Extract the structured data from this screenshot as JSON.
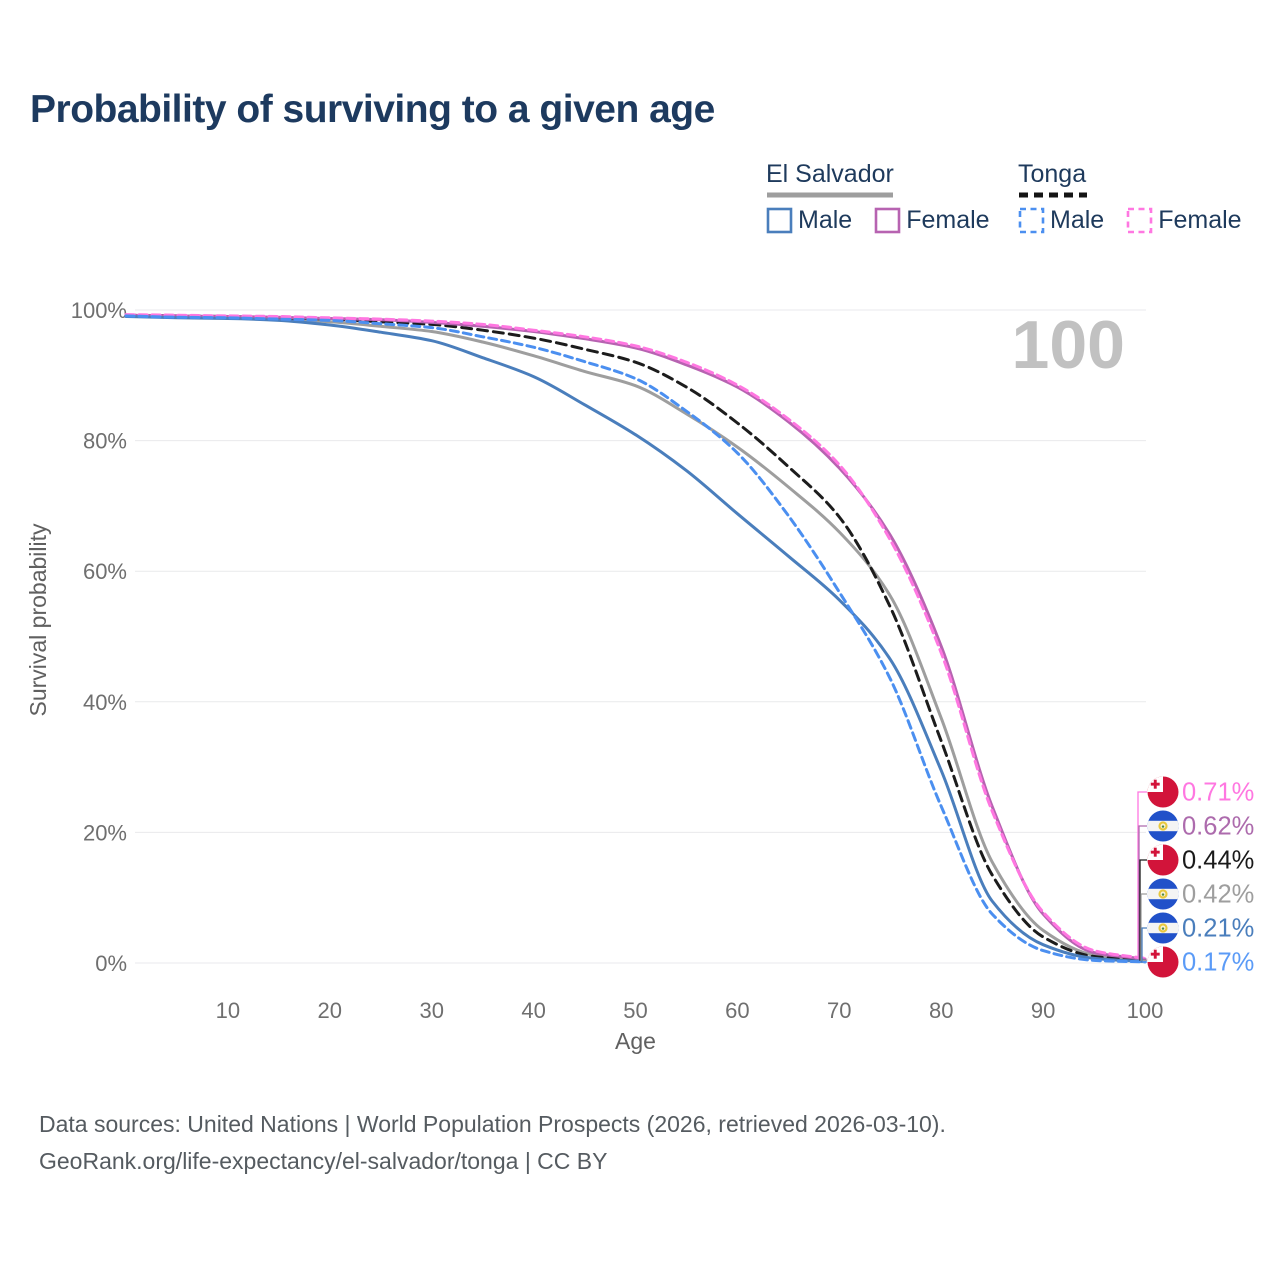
{
  "title": "Probability of surviving to a given age",
  "legend": {
    "groups": [
      {
        "name": "El Salvador",
        "line_style": "solid",
        "line_color": "#9e9e9e",
        "items": [
          {
            "label": "Male",
            "color": "#4a7ebc",
            "dashed": false
          },
          {
            "label": "Female",
            "color": "#b763b1",
            "dashed": false
          }
        ]
      },
      {
        "name": "Tonga",
        "line_style": "dashed",
        "line_color": "#141414",
        "items": [
          {
            "label": "Male",
            "color": "#4b8ff0",
            "dashed": true
          },
          {
            "label": "Female",
            "color": "#ff77e1",
            "dashed": true
          }
        ]
      }
    ]
  },
  "chart_data": {
    "type": "line",
    "title": "Probability of surviving to a given age",
    "xlabel": "Age",
    "ylabel": "Survival probability",
    "xlim": [
      0,
      100
    ],
    "ylim": [
      0,
      100
    ],
    "x_ticks": [
      10,
      20,
      30,
      40,
      50,
      60,
      70,
      80,
      90,
      100
    ],
    "y_ticks": [
      0,
      20,
      40,
      60,
      80,
      100
    ],
    "y_tick_suffix": "%",
    "grid": "horizontal",
    "hover_age_watermark": "100",
    "ages": [
      0,
      5,
      10,
      15,
      20,
      25,
      30,
      35,
      40,
      45,
      50,
      55,
      60,
      65,
      70,
      75,
      80,
      85,
      90,
      95,
      100
    ],
    "series": [
      {
        "id": "el-salvador-total",
        "name": "El Salvador (both sexes)",
        "color": "#9e9e9e",
        "dashed": false,
        "values": [
          99.1,
          99.0,
          98.8,
          98.6,
          98.2,
          97.5,
          96.7,
          95.1,
          93.0,
          90.6,
          88.4,
          84.1,
          79.0,
          72.9,
          66.0,
          56.2,
          37.5,
          15.5,
          5.0,
          1.2,
          0.42
        ],
        "end_label": "0.42%"
      },
      {
        "id": "tonga-total",
        "name": "Tonga (both sexes)",
        "color": "#1c1c1c",
        "dashed": true,
        "values": [
          99.2,
          99.1,
          99.0,
          98.8,
          98.6,
          98.2,
          97.8,
          96.9,
          95.7,
          94.0,
          92.0,
          88.2,
          82.7,
          76.0,
          68.3,
          54.5,
          34.0,
          13.5,
          4.0,
          1.0,
          0.44
        ],
        "end_label": "0.44%"
      },
      {
        "id": "el-salvador-female",
        "name": "El Salvador Female",
        "color": "#b763b1",
        "dashed": false,
        "values": [
          99.2,
          99.1,
          99.0,
          98.9,
          98.7,
          98.5,
          98.1,
          97.5,
          96.7,
          95.6,
          94.2,
          91.6,
          88.2,
          82.9,
          75.8,
          65.5,
          48.5,
          24.0,
          7.5,
          1.6,
          0.62
        ],
        "end_label": "0.62%"
      },
      {
        "id": "tonga-female",
        "name": "Tonga Female",
        "color": "#ff77e1",
        "dashed": true,
        "values": [
          99.3,
          99.2,
          99.1,
          99.0,
          98.8,
          98.6,
          98.3,
          97.8,
          96.9,
          95.9,
          94.5,
          92.0,
          88.5,
          83.3,
          76.3,
          64.8,
          47.5,
          23.3,
          7.8,
          1.9,
          0.71
        ],
        "end_label": "0.71%"
      },
      {
        "id": "el-salvador-male",
        "name": "El Salvador Male",
        "color": "#4a7ebc",
        "dashed": false,
        "values": [
          99.0,
          98.8,
          98.7,
          98.4,
          97.7,
          96.6,
          95.3,
          92.7,
          89.8,
          85.5,
          80.9,
          75.4,
          68.8,
          62.3,
          55.6,
          46.5,
          29.5,
          9.5,
          2.8,
          0.7,
          0.21
        ],
        "end_label": "0.21%"
      },
      {
        "id": "tonga-male",
        "name": "Tonga Male",
        "color": "#4b8ff0",
        "dashed": true,
        "values": [
          99.1,
          98.9,
          98.8,
          98.6,
          98.4,
          97.9,
          97.3,
          95.9,
          94.3,
          92.1,
          89.5,
          84.5,
          78.1,
          68.5,
          56.8,
          43.5,
          24.0,
          7.5,
          1.9,
          0.4,
          0.17
        ],
        "end_label": "0.17%"
      }
    ],
    "end_labels": [
      {
        "value": "0.71%",
        "series": "tonga-female",
        "flag": "tonga",
        "color": "#ff77e1"
      },
      {
        "value": "0.62%",
        "series": "el-salvador-female",
        "flag": "el-salvador",
        "color": "#ad6bad"
      },
      {
        "value": "0.44%",
        "series": "tonga-total",
        "flag": "tonga",
        "color": "#1a1a1a"
      },
      {
        "value": "0.42%",
        "series": "el-salvador-total",
        "flag": "el-salvador",
        "color": "#9e9e9e"
      },
      {
        "value": "0.21%",
        "series": "el-salvador-male",
        "flag": "el-salvador",
        "color": "#4a7ebc"
      },
      {
        "value": "0.17%",
        "series": "tonga-male",
        "flag": "tonga",
        "color": "#5b9bf7"
      }
    ]
  },
  "source": {
    "line1": "Data sources: United Nations | World Population Prospects (2026, retrieved 2026-03-10).",
    "line2": "GeoRank.org/life-expectancy/el-salvador/tonga | CC BY"
  }
}
